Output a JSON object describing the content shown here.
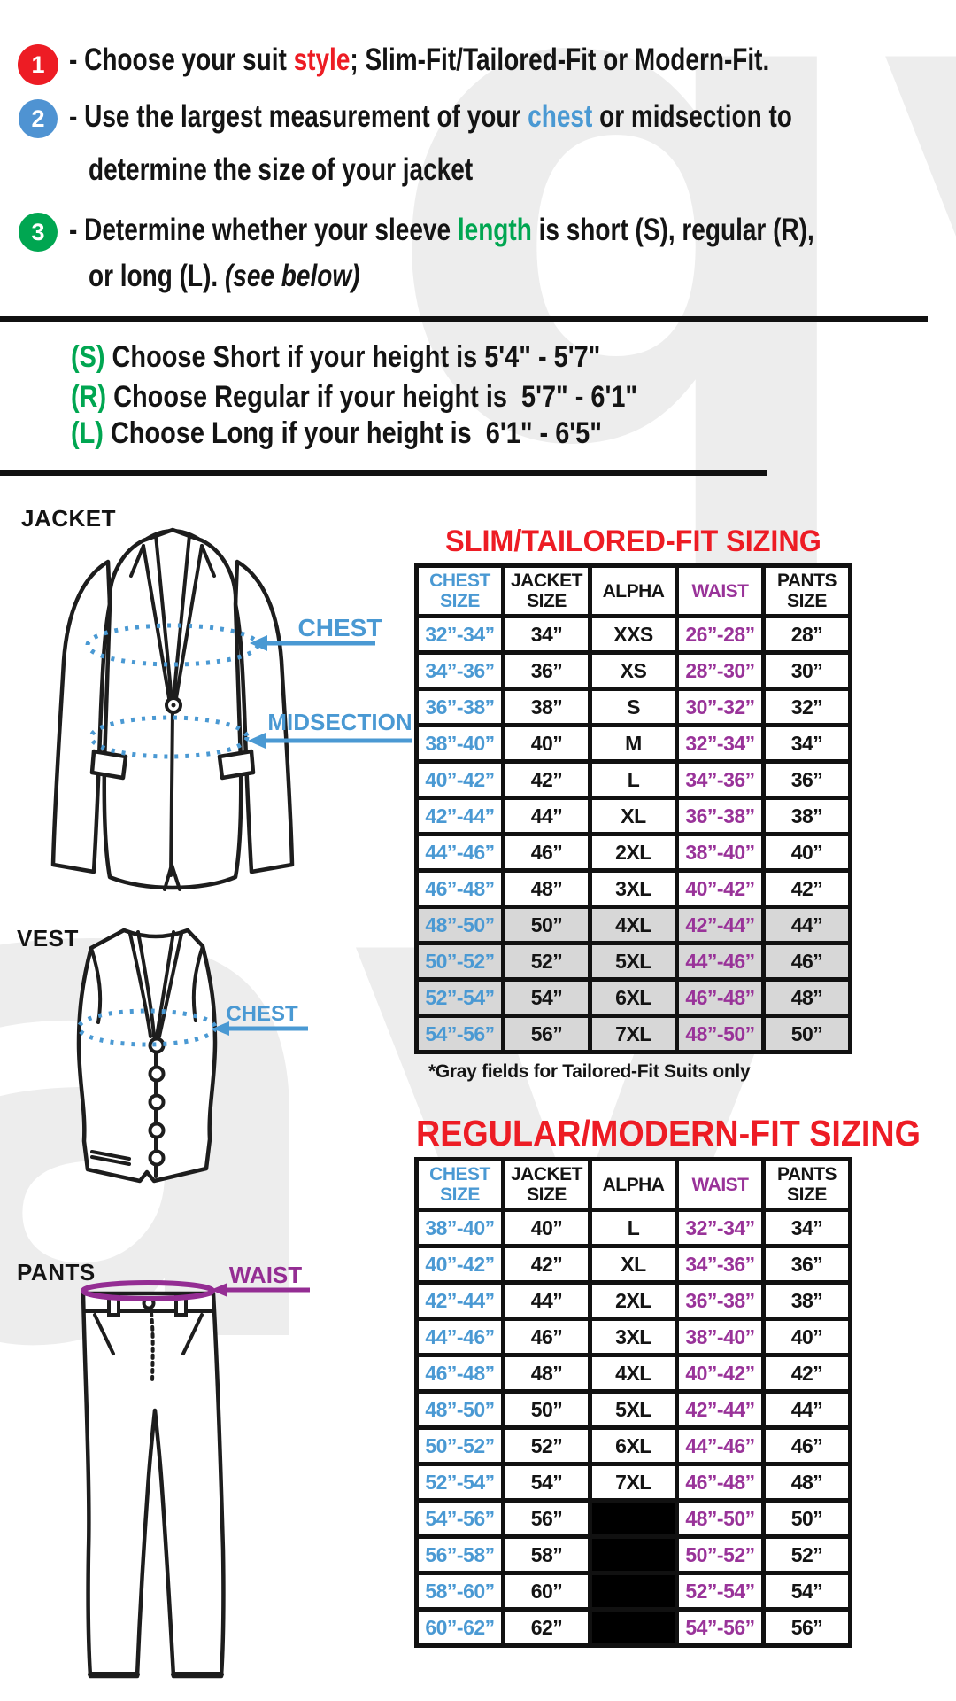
{
  "colors": {
    "accent_red": "#ed1c24",
    "accent_blue": "#4a99d3",
    "accent_purple": "#993399",
    "accent_green": "#00a651",
    "gray_row": "#d7d7d7",
    "black_cell": "#000000"
  },
  "instructions": {
    "step1": {
      "num": "1",
      "pre": "- Choose your suit ",
      "highlight": "style",
      "post": "; Slim-Fit/Tailored-Fit or Modern-Fit."
    },
    "step2": {
      "num": "2",
      "pre": "- Use the largest measurement of your ",
      "highlight": "chest",
      "post": " or midsection to",
      "line2": "determine the size of your jacket"
    },
    "step3": {
      "num": "3",
      "pre": "- Determine whether your sleeve ",
      "highlight": "length",
      "post": " is short (S), regular (R),",
      "line2_pre": "or long (L). ",
      "line2_italic": "(see below)"
    }
  },
  "height_guide": {
    "rows": [
      {
        "letter": "(S)",
        "text": " Choose Short if your height is 5'4\" - 5'7\""
      },
      {
        "letter": "(R)",
        "text": " Choose Regular if your height is  5'7\" - 6'1\""
      },
      {
        "letter": "(L)",
        "text": " Choose Long if your height is  6'1\" - 6'5\""
      }
    ]
  },
  "diagrams": {
    "jacket": {
      "title": "JACKET",
      "chest_label": "CHEST",
      "midsection_label": "MIDSECTION"
    },
    "vest": {
      "title": "VEST",
      "chest_label": "CHEST"
    },
    "pants": {
      "title": "PANTS",
      "waist_label": "WAIST"
    }
  },
  "tables": {
    "headers": [
      "CHEST\nSIZE",
      "JACKET\nSIZE",
      "ALPHA",
      "WAIST",
      "PANTS\nSIZE"
    ],
    "slim": {
      "title": "SLIM/TAILORED-FIT SIZING",
      "note": "*Gray fields for Tailored-Fit Suits only",
      "rows": [
        {
          "cells": [
            "32”-34”",
            "34”",
            "XXS",
            "26”-28”",
            "28”"
          ],
          "gray": false
        },
        {
          "cells": [
            "34”-36”",
            "36”",
            "XS",
            "28”-30”",
            "30”"
          ],
          "gray": false
        },
        {
          "cells": [
            "36”-38”",
            "38”",
            "S",
            "30”-32”",
            "32”"
          ],
          "gray": false
        },
        {
          "cells": [
            "38”-40”",
            "40”",
            "M",
            "32”-34”",
            "34”"
          ],
          "gray": false
        },
        {
          "cells": [
            "40”-42”",
            "42”",
            "L",
            "34”-36”",
            "36”"
          ],
          "gray": false
        },
        {
          "cells": [
            "42”-44”",
            "44”",
            "XL",
            "36”-38”",
            "38”"
          ],
          "gray": false
        },
        {
          "cells": [
            "44”-46”",
            "46”",
            "2XL",
            "38”-40”",
            "40”"
          ],
          "gray": false
        },
        {
          "cells": [
            "46”-48”",
            "48”",
            "3XL",
            "40”-42”",
            "42”"
          ],
          "gray": false
        },
        {
          "cells": [
            "48”-50”",
            "50”",
            "4XL",
            "42”-44”",
            "44”"
          ],
          "gray": true
        },
        {
          "cells": [
            "50”-52”",
            "52”",
            "5XL",
            "44”-46”",
            "46”"
          ],
          "gray": true
        },
        {
          "cells": [
            "52”-54”",
            "54”",
            "6XL",
            "46”-48”",
            "48”"
          ],
          "gray": true
        },
        {
          "cells": [
            "54”-56”",
            "56”",
            "7XL",
            "48”-50”",
            "50”"
          ],
          "gray": true
        }
      ]
    },
    "regular": {
      "title": "REGULAR/MODERN-FIT SIZING",
      "rows": [
        {
          "cells": [
            "38”-40”",
            "40”",
            "L",
            "32”-34”",
            "34”"
          ],
          "black_alpha": false
        },
        {
          "cells": [
            "40”-42”",
            "42”",
            "XL",
            "34”-36”",
            "36”"
          ],
          "black_alpha": false
        },
        {
          "cells": [
            "42”-44”",
            "44”",
            "2XL",
            "36”-38”",
            "38”"
          ],
          "black_alpha": false
        },
        {
          "cells": [
            "44”-46”",
            "46”",
            "3XL",
            "38”-40”",
            "40”"
          ],
          "black_alpha": false
        },
        {
          "cells": [
            "46”-48”",
            "48”",
            "4XL",
            "40”-42”",
            "42”"
          ],
          "black_alpha": false
        },
        {
          "cells": [
            "48”-50”",
            "50”",
            "5XL",
            "42”-44”",
            "44”"
          ],
          "black_alpha": false
        },
        {
          "cells": [
            "50”-52”",
            "52”",
            "6XL",
            "44”-46”",
            "46”"
          ],
          "black_alpha": false
        },
        {
          "cells": [
            "52”-54”",
            "54”",
            "7XL",
            "46”-48”",
            "48”"
          ],
          "black_alpha": false
        },
        {
          "cells": [
            "54”-56”",
            "56”",
            "",
            "48”-50”",
            "50”"
          ],
          "black_alpha": true
        },
        {
          "cells": [
            "56”-58”",
            "58”",
            "",
            "50”-52”",
            "52”"
          ],
          "black_alpha": true
        },
        {
          "cells": [
            "58”-60”",
            "60”",
            "",
            "52”-54”",
            "54”"
          ],
          "black_alpha": true
        },
        {
          "cells": [
            "60”-62”",
            "62”",
            "",
            "54”-56”",
            "56”"
          ],
          "black_alpha": true
        }
      ]
    }
  }
}
